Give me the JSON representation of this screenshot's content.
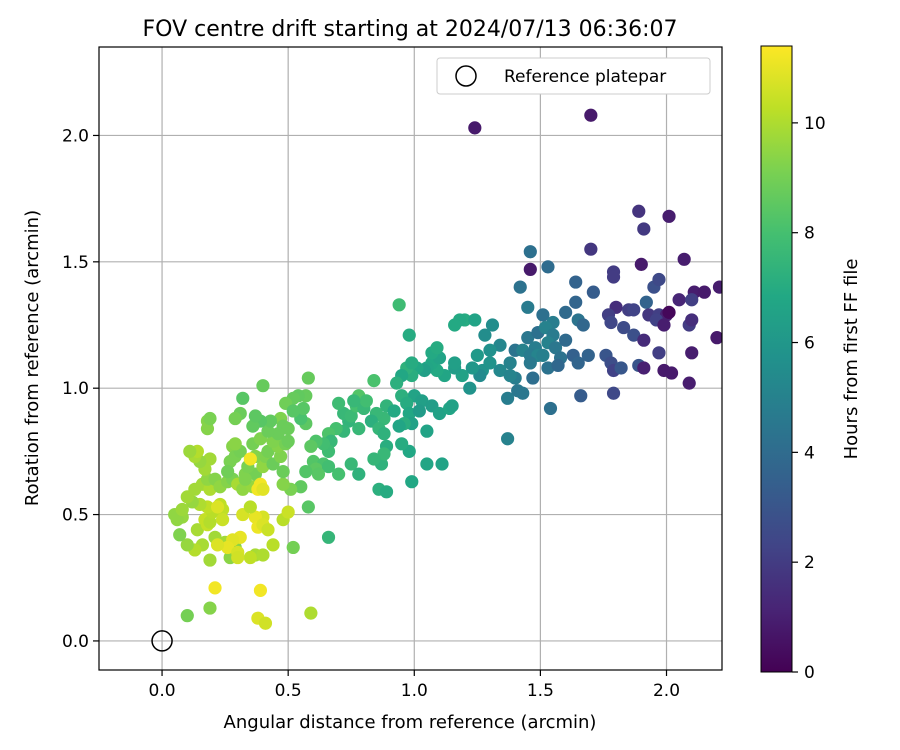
{
  "chart_data": {
    "type": "scatter",
    "title": "FOV centre drift starting at 2024/07/13 06:36:07",
    "xlabel": "Angular distance from reference (arcmin)",
    "ylabel": "Rotation from reference (arcmin)",
    "xlim": [
      -0.25,
      2.22
    ],
    "ylim": [
      -0.115,
      2.35
    ],
    "xticks": [
      "0.0",
      "0.5",
      "1.0",
      "1.5",
      "2.0"
    ],
    "yticks": [
      "0.0",
      "0.5",
      "1.0",
      "1.5",
      "2.0"
    ],
    "grid": true,
    "legend": {
      "position": "top-right",
      "entries": [
        {
          "label": "Reference platepar",
          "marker": "open-circle",
          "x": 0.0,
          "y": 0.0
        }
      ]
    },
    "colorbar": {
      "label": "Hours from first FF file",
      "colormap": "viridis",
      "range": [
        0,
        11.4
      ],
      "ticks": [
        "0",
        "2",
        "4",
        "6",
        "8",
        "10"
      ]
    },
    "points": [
      [
        1.24,
        2.03,
        0.8
      ],
      [
        1.7,
        2.08,
        0.8
      ],
      [
        1.7,
        1.55,
        1.8
      ],
      [
        1.89,
        1.7,
        1.7
      ],
      [
        2.01,
        1.68,
        0.9
      ],
      [
        1.91,
        1.63,
        1.9
      ],
      [
        2.07,
        1.51,
        0.9
      ],
      [
        1.46,
        1.54,
        4.2
      ],
      [
        1.53,
        1.48,
        4.0
      ],
      [
        1.46,
        1.47,
        0.8
      ],
      [
        1.79,
        1.46,
        2.0
      ],
      [
        1.9,
        1.49,
        0.8
      ],
      [
        1.79,
        1.44,
        2.0
      ],
      [
        1.95,
        1.4,
        2.8
      ],
      [
        1.97,
        1.43,
        2.5
      ],
      [
        2.11,
        1.38,
        0.9
      ],
      [
        2.15,
        1.38,
        0.8
      ],
      [
        2.05,
        1.35,
        1.2
      ],
      [
        2.1,
        1.35,
        2.1
      ],
      [
        2.21,
        1.4,
        0.9
      ],
      [
        1.64,
        1.42,
        3.6
      ],
      [
        1.71,
        1.38,
        3.3
      ],
      [
        1.8,
        1.32,
        1.5
      ],
      [
        1.85,
        1.31,
        2.1
      ],
      [
        1.87,
        1.31,
        2.3
      ],
      [
        1.92,
        1.34,
        3.6
      ],
      [
        1.93,
        1.29,
        1.8
      ],
      [
        1.97,
        1.29,
        2.1
      ],
      [
        2.0,
        1.29,
        1.0
      ],
      [
        2.01,
        1.3,
        0.2
      ],
      [
        1.42,
        1.4,
        4.3
      ],
      [
        1.45,
        1.32,
        4.7
      ],
      [
        1.51,
        1.29,
        4.2
      ],
      [
        1.55,
        1.26,
        4.8
      ],
      [
        1.6,
        1.3,
        3.9
      ],
      [
        1.64,
        1.34,
        3.7
      ],
      [
        1.65,
        1.27,
        4.4
      ],
      [
        1.67,
        1.25,
        3.8
      ],
      [
        1.77,
        1.29,
        2.1
      ],
      [
        1.78,
        1.26,
        2.4
      ],
      [
        1.83,
        1.24,
        2.6
      ],
      [
        1.87,
        1.21,
        2.8
      ],
      [
        1.91,
        1.19,
        1.4
      ],
      [
        1.96,
        1.27,
        2.2
      ],
      [
        1.99,
        1.25,
        0.9
      ],
      [
        2.09,
        1.25,
        2.0
      ],
      [
        2.1,
        1.27,
        1.5
      ],
      [
        2.2,
        1.2,
        0.8
      ],
      [
        1.45,
        1.2,
        4.5
      ],
      [
        1.49,
        1.22,
        4.2
      ],
      [
        1.52,
        1.24,
        5.0
      ],
      [
        1.55,
        1.21,
        4.7
      ],
      [
        1.48,
        1.16,
        4.8
      ],
      [
        1.53,
        1.18,
        5.0
      ],
      [
        1.56,
        1.16,
        4.5
      ],
      [
        1.58,
        1.12,
        4.3
      ],
      [
        1.6,
        1.19,
        3.9
      ],
      [
        1.63,
        1.13,
        3.5
      ],
      [
        1.65,
        1.1,
        3.7
      ],
      [
        1.69,
        1.13,
        3.6
      ],
      [
        1.76,
        1.13,
        3.0
      ],
      [
        1.78,
        1.1,
        2.7
      ],
      [
        1.79,
        1.07,
        2.2
      ],
      [
        1.82,
        1.08,
        3.1
      ],
      [
        1.89,
        1.09,
        3.0
      ],
      [
        1.91,
        1.08,
        1.0
      ],
      [
        1.97,
        1.14,
        2.1
      ],
      [
        1.99,
        1.07,
        0.8
      ],
      [
        2.02,
        1.06,
        0.8
      ],
      [
        2.1,
        1.14,
        0.9
      ],
      [
        2.09,
        1.02,
        0.9
      ],
      [
        1.4,
        1.15,
        4.4
      ],
      [
        1.43,
        1.15,
        5.0
      ],
      [
        1.46,
        1.13,
        4.7
      ],
      [
        1.49,
        1.13,
        5.1
      ],
      [
        1.51,
        1.13,
        4.9
      ],
      [
        1.46,
        1.1,
        4.6
      ],
      [
        1.53,
        1.08,
        4.3
      ],
      [
        1.57,
        1.09,
        3.8
      ],
      [
        1.47,
        1.04,
        4.1
      ],
      [
        1.4,
        1.04,
        4.8
      ],
      [
        1.38,
        1.1,
        5.0
      ],
      [
        1.34,
        1.07,
        5.3
      ],
      [
        1.38,
        1.05,
        5.1
      ],
      [
        1.41,
        0.99,
        4.5
      ],
      [
        1.37,
        0.96,
        4.8
      ],
      [
        1.43,
        0.98,
        4.5
      ],
      [
        1.54,
        0.92,
        4.2
      ],
      [
        1.66,
        0.97,
        3.3
      ],
      [
        1.79,
        0.98,
        2.5
      ],
      [
        1.37,
        0.8,
        5.0
      ],
      [
        1.34,
        1.17,
        5.2
      ],
      [
        1.3,
        1.15,
        5.7
      ],
      [
        1.28,
        1.21,
        5.5
      ],
      [
        1.31,
        1.25,
        5.5
      ],
      [
        1.25,
        1.13,
        6.1
      ],
      [
        1.27,
        1.07,
        5.8
      ],
      [
        1.3,
        1.1,
        5.8
      ],
      [
        1.26,
        1.05,
        5.4
      ],
      [
        1.23,
        1.08,
        6.0
      ],
      [
        1.22,
        1.0,
        5.8
      ],
      [
        1.19,
        1.05,
        6.5
      ],
      [
        1.16,
        1.08,
        6.3
      ],
      [
        1.12,
        1.05,
        6.7
      ],
      [
        1.09,
        1.07,
        6.9
      ],
      [
        1.07,
        1.1,
        6.8
      ],
      [
        1.05,
        1.08,
        6.7
      ],
      [
        1.04,
        1.07,
        6.4
      ],
      [
        1.1,
        1.12,
        6.6
      ],
      [
        1.16,
        1.1,
        6.4
      ],
      [
        1.07,
        1.14,
        6.9
      ],
      [
        1.09,
        1.16,
        7.0
      ],
      [
        1.01,
        1.08,
        6.8
      ],
      [
        0.99,
        1.05,
        7.1
      ],
      [
        0.97,
        1.08,
        7.3
      ],
      [
        0.99,
        1.1,
        7.0
      ],
      [
        0.95,
        1.05,
        6.8
      ],
      [
        0.93,
        1.02,
        7.2
      ],
      [
        1.2,
        1.27,
        7.0
      ],
      [
        1.18,
        1.27,
        6.9
      ],
      [
        1.16,
        1.25,
        6.9
      ],
      [
        1.24,
        1.27,
        6.6
      ],
      [
        0.94,
        1.33,
        7.8
      ],
      [
        0.98,
        1.21,
        7.0
      ],
      [
        1.0,
        0.97,
        6.6
      ],
      [
        1.03,
        0.95,
        6.4
      ],
      [
        1.07,
        0.93,
        6.3
      ],
      [
        1.1,
        0.9,
        6.5
      ],
      [
        1.14,
        0.92,
        6.7
      ],
      [
        0.95,
        0.97,
        7.2
      ],
      [
        0.97,
        0.94,
        7.0
      ],
      [
        0.98,
        0.9,
        6.8
      ],
      [
        0.99,
        0.86,
        6.5
      ],
      [
        0.96,
        0.86,
        7.1
      ],
      [
        1.02,
        0.91,
        6.2
      ],
      [
        0.89,
        0.93,
        7.4
      ],
      [
        0.88,
        0.88,
        7.6
      ],
      [
        0.92,
        0.91,
        6.9
      ],
      [
        0.85,
        0.9,
        7.6
      ],
      [
        0.83,
        0.87,
        7.2
      ],
      [
        0.86,
        0.84,
        7.5
      ],
      [
        0.88,
        0.82,
        7.3
      ],
      [
        0.94,
        0.85,
        6.7
      ],
      [
        1.05,
        0.83,
        6.6
      ],
      [
        0.98,
        0.75,
        6.8
      ],
      [
        0.95,
        0.78,
        7.0
      ],
      [
        0.89,
        0.77,
        7.1
      ],
      [
        0.87,
        0.7,
        7.3
      ],
      [
        0.88,
        0.74,
        7.6
      ],
      [
        0.84,
        0.72,
        7.5
      ],
      [
        0.78,
        0.84,
        7.6
      ],
      [
        0.74,
        0.87,
        7.4
      ],
      [
        0.72,
        0.9,
        7.6
      ],
      [
        0.75,
        0.89,
        7.7
      ],
      [
        0.77,
        0.93,
        8.0
      ],
      [
        0.78,
        0.97,
        8.3
      ],
      [
        0.84,
        1.03,
        8.1
      ],
      [
        0.8,
        0.92,
        7.6
      ],
      [
        0.81,
        0.95,
        7.9
      ],
      [
        0.76,
        0.95,
        7.6
      ],
      [
        0.7,
        0.94,
        7.8
      ],
      [
        0.72,
        0.83,
        7.5
      ],
      [
        0.69,
        0.84,
        8.0
      ],
      [
        0.66,
        0.82,
        8.2
      ],
      [
        0.67,
        0.79,
        7.6
      ],
      [
        0.66,
        0.75,
        7.8
      ],
      [
        0.64,
        0.78,
        7.9
      ],
      [
        0.61,
        0.79,
        8.2
      ],
      [
        0.59,
        0.77,
        8.5
      ],
      [
        0.57,
        0.86,
        8.5
      ],
      [
        0.55,
        0.88,
        8.1
      ],
      [
        0.56,
        0.92,
        8.4
      ],
      [
        0.57,
        0.97,
        8.7
      ],
      [
        0.58,
        1.04,
        8.7
      ],
      [
        0.54,
        0.97,
        8.6
      ],
      [
        0.52,
        0.96,
        8.7
      ],
      [
        0.49,
        0.94,
        8.9
      ],
      [
        0.47,
        0.88,
        9.2
      ],
      [
        0.48,
        0.85,
        8.8
      ],
      [
        0.5,
        0.84,
        8.8
      ],
      [
        0.52,
        0.91,
        8.4
      ],
      [
        0.6,
        0.71,
        8.3
      ],
      [
        0.64,
        0.7,
        8.1
      ],
      [
        0.61,
        0.68,
        8.5
      ],
      [
        0.66,
        0.69,
        7.9
      ],
      [
        0.62,
        0.66,
        8.4
      ],
      [
        0.57,
        0.67,
        8.3
      ],
      [
        0.55,
        0.61,
        8.6
      ],
      [
        0.51,
        0.6,
        9.1
      ],
      [
        0.48,
        0.62,
        9.3
      ],
      [
        0.58,
        0.53,
        8.4
      ],
      [
        0.66,
        0.41,
        7.5
      ],
      [
        0.7,
        0.66,
        8.0
      ],
      [
        0.75,
        0.7,
        7.6
      ],
      [
        0.78,
        0.66,
        7.3
      ],
      [
        0.86,
        0.6,
        7.2
      ],
      [
        0.89,
        0.59,
        7.0
      ],
      [
        0.99,
        0.63,
        6.8
      ],
      [
        1.05,
        0.7,
        6.7
      ],
      [
        1.11,
        0.7,
        6.6
      ],
      [
        1.15,
        0.93,
        6.5
      ],
      [
        0.52,
        0.37,
        9.0
      ],
      [
        0.59,
        0.11,
        10.0
      ],
      [
        0.37,
        0.34,
        9.9
      ],
      [
        0.35,
        0.33,
        10.3
      ],
      [
        0.29,
        0.37,
        9.4
      ],
      [
        0.27,
        0.33,
        9.4
      ],
      [
        0.26,
        0.38,
        10.5
      ],
      [
        0.25,
        0.39,
        9.8
      ],
      [
        0.21,
        0.41,
        9.8
      ],
      [
        0.16,
        0.38,
        9.9
      ],
      [
        0.13,
        0.36,
        10.1
      ],
      [
        0.1,
        0.38,
        9.6
      ],
      [
        0.07,
        0.42,
        9.2
      ],
      [
        0.14,
        0.44,
        9.9
      ],
      [
        0.18,
        0.46,
        10.4
      ],
      [
        0.17,
        0.48,
        10.4
      ],
      [
        0.19,
        0.47,
        10.1
      ],
      [
        0.2,
        0.51,
        10.2
      ],
      [
        0.23,
        0.54,
        10.3
      ],
      [
        0.24,
        0.52,
        10.3
      ],
      [
        0.18,
        0.53,
        10.3
      ],
      [
        0.15,
        0.54,
        10.0
      ],
      [
        0.12,
        0.55,
        9.6
      ],
      [
        0.1,
        0.57,
        9.8
      ],
      [
        0.08,
        0.49,
        9.6
      ],
      [
        0.06,
        0.48,
        9.5
      ],
      [
        0.05,
        0.5,
        9.5
      ],
      [
        0.08,
        0.52,
        9.7
      ],
      [
        0.13,
        0.6,
        9.8
      ],
      [
        0.16,
        0.62,
        9.8
      ],
      [
        0.19,
        0.6,
        10.0
      ],
      [
        0.18,
        0.64,
        9.5
      ],
      [
        0.21,
        0.64,
        9.3
      ],
      [
        0.23,
        0.61,
        9.5
      ],
      [
        0.26,
        0.63,
        9.3
      ],
      [
        0.28,
        0.64,
        9.1
      ],
      [
        0.3,
        0.62,
        9.9
      ],
      [
        0.32,
        0.6,
        9.5
      ],
      [
        0.36,
        0.61,
        9.6
      ],
      [
        0.33,
        0.66,
        9.2
      ],
      [
        0.37,
        0.66,
        9.0
      ],
      [
        0.4,
        0.69,
        9.5
      ],
      [
        0.37,
        0.73,
        9.3
      ],
      [
        0.41,
        0.73,
        9.2
      ],
      [
        0.36,
        0.78,
        9.0
      ],
      [
        0.39,
        0.8,
        9.2
      ],
      [
        0.42,
        0.75,
        9.0
      ],
      [
        0.44,
        0.7,
        8.8
      ],
      [
        0.48,
        0.67,
        8.8
      ],
      [
        0.47,
        0.73,
        9.2
      ],
      [
        0.46,
        0.77,
        9.3
      ],
      [
        0.44,
        0.79,
        9.2
      ],
      [
        0.49,
        0.78,
        9.0
      ],
      [
        0.5,
        0.79,
        8.8
      ],
      [
        0.46,
        0.82,
        8.8
      ],
      [
        0.42,
        0.83,
        8.8
      ],
      [
        0.43,
        0.87,
        8.6
      ],
      [
        0.39,
        0.87,
        8.4
      ],
      [
        0.36,
        0.85,
        8.6
      ],
      [
        0.37,
        0.89,
        8.5
      ],
      [
        0.31,
        0.9,
        8.8
      ],
      [
        0.29,
        0.88,
        9.0
      ],
      [
        0.28,
        0.77,
        9.3
      ],
      [
        0.27,
        0.71,
        9.1
      ],
      [
        0.26,
        0.67,
        8.9
      ],
      [
        0.29,
        0.73,
        9.1
      ],
      [
        0.31,
        0.75,
        9.0
      ],
      [
        0.34,
        0.69,
        9.1
      ],
      [
        0.33,
        0.64,
        9.2
      ],
      [
        0.17,
        0.68,
        9.8
      ],
      [
        0.19,
        0.72,
        9.8
      ],
      [
        0.15,
        0.71,
        9.6
      ],
      [
        0.13,
        0.73,
        9.9
      ],
      [
        0.14,
        0.75,
        10.1
      ],
      [
        0.11,
        0.75,
        9.7
      ],
      [
        0.18,
        0.84,
        9.3
      ],
      [
        0.18,
        0.87,
        9.3
      ],
      [
        0.19,
        0.88,
        9.1
      ],
      [
        0.32,
        0.96,
        8.4
      ],
      [
        0.4,
        1.01,
        8.7
      ],
      [
        0.29,
        0.78,
        9.4
      ],
      [
        0.35,
        0.72,
        11.2
      ],
      [
        0.39,
        0.62,
        11.2
      ],
      [
        0.38,
        0.6,
        11.2
      ],
      [
        0.4,
        0.49,
        10.7
      ],
      [
        0.37,
        0.49,
        11.0
      ],
      [
        0.38,
        0.45,
        11.1
      ],
      [
        0.4,
        0.46,
        10.8
      ],
      [
        0.42,
        0.44,
        10.5
      ],
      [
        0.44,
        0.38,
        10.2
      ],
      [
        0.48,
        0.48,
        10.2
      ],
      [
        0.5,
        0.51,
        10.5
      ],
      [
        0.4,
        0.34,
        10.0
      ],
      [
        0.31,
        0.41,
        11.0
      ],
      [
        0.28,
        0.4,
        10.9
      ],
      [
        0.26,
        0.37,
        11.0
      ],
      [
        0.3,
        0.35,
        10.7
      ],
      [
        0.22,
        0.38,
        10.8
      ],
      [
        0.21,
        0.21,
        11.2
      ],
      [
        0.19,
        0.32,
        9.8
      ],
      [
        0.19,
        0.13,
        9.3
      ],
      [
        0.1,
        0.1,
        9.0
      ],
      [
        0.39,
        0.2,
        11.2
      ],
      [
        0.38,
        0.09,
        10.8
      ],
      [
        0.41,
        0.07,
        10.6
      ],
      [
        0.3,
        0.33,
        10.6
      ],
      [
        0.32,
        0.5,
        10.7
      ],
      [
        0.35,
        0.53,
        10.2
      ],
      [
        0.24,
        0.48,
        10.5
      ],
      [
        0.22,
        0.53,
        10.8
      ],
      [
        0.4,
        0.6,
        10.9
      ]
    ]
  }
}
